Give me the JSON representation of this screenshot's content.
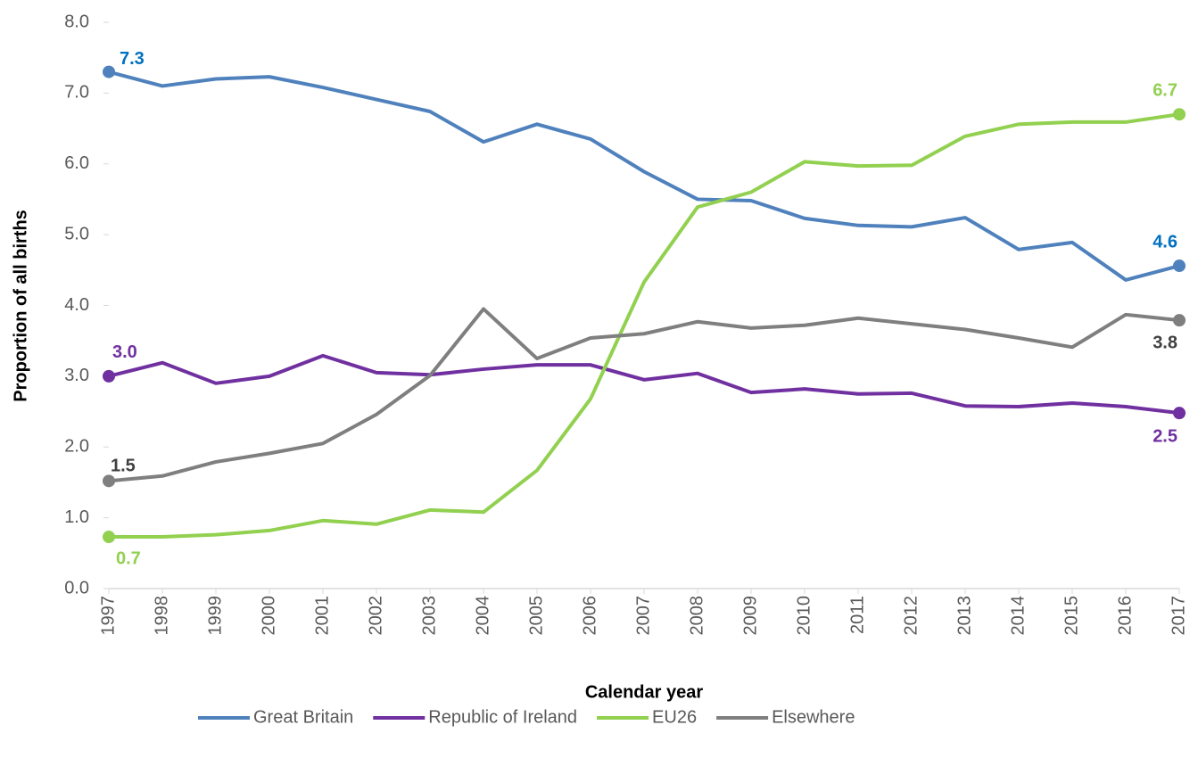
{
  "chart_data": {
    "type": "line",
    "x_label": "Calendar year",
    "y_label": "Proportion of all births",
    "categories": [
      "1997",
      "1998",
      "1999",
      "2000",
      "2001",
      "2002",
      "2003",
      "2004",
      "2005",
      "2006",
      "2007",
      "2008",
      "2009",
      "2010",
      "2011",
      "2012",
      "2013",
      "2014",
      "2015",
      "2016",
      "2017"
    ],
    "series": [
      {
        "name": "Great Britain",
        "color": "#4f81bd",
        "values": [
          7.3,
          7.1,
          7.2,
          7.23,
          7.08,
          6.91,
          6.74,
          6.31,
          6.56,
          6.35,
          5.89,
          5.5,
          5.48,
          5.23,
          5.13,
          5.11,
          5.24,
          4.79,
          4.89,
          4.36,
          4.56
        ],
        "value_labels": [
          "7.3",
          null,
          null,
          null,
          null,
          null,
          null,
          null,
          null,
          null,
          null,
          null,
          null,
          null,
          null,
          null,
          null,
          null,
          null,
          null,
          "4.6"
        ]
      },
      {
        "name": "Republic of Ireland",
        "color": "#7030a0",
        "values": [
          3.0,
          3.19,
          2.9,
          3.0,
          3.29,
          3.05,
          3.02,
          3.1,
          3.16,
          3.16,
          2.95,
          3.04,
          2.77,
          2.82,
          2.75,
          2.76,
          2.58,
          2.57,
          2.62,
          2.57,
          2.48
        ],
        "value_labels": [
          "3.0",
          null,
          null,
          null,
          null,
          null,
          null,
          null,
          null,
          null,
          null,
          null,
          null,
          null,
          null,
          null,
          null,
          null,
          null,
          null,
          "2.5"
        ]
      },
      {
        "name": "EU26",
        "color": "#92d050",
        "values": [
          0.73,
          0.73,
          0.76,
          0.82,
          0.96,
          0.91,
          1.11,
          1.08,
          1.67,
          2.68,
          4.33,
          5.39,
          5.6,
          6.03,
          5.97,
          5.98,
          6.39,
          6.56,
          6.59,
          6.59,
          6.7
        ],
        "value_labels": [
          "0.7",
          null,
          null,
          null,
          null,
          null,
          null,
          null,
          null,
          null,
          null,
          null,
          null,
          null,
          null,
          null,
          null,
          null,
          null,
          null,
          "6.7"
        ]
      },
      {
        "name": "Elsewhere",
        "color": "#7f7f7f",
        "values": [
          1.52,
          1.59,
          1.79,
          1.91,
          2.05,
          2.46,
          3.01,
          3.95,
          3.25,
          3.54,
          3.6,
          3.77,
          3.68,
          3.72,
          3.82,
          3.74,
          3.66,
          3.54,
          3.41,
          3.87,
          3.79
        ],
        "value_labels": [
          "1.5",
          null,
          null,
          null,
          null,
          null,
          null,
          null,
          null,
          null,
          null,
          null,
          null,
          null,
          null,
          null,
          null,
          null,
          null,
          null,
          "3.8"
        ]
      }
    ],
    "ylim": [
      0,
      8
    ],
    "yticks": [
      {
        "value": 0,
        "label": "0.0"
      },
      {
        "value": 1,
        "label": "1.0"
      },
      {
        "value": 2,
        "label": "2.0"
      },
      {
        "value": 3,
        "label": "3.0"
      },
      {
        "value": 4,
        "label": "4.0"
      },
      {
        "value": 5,
        "label": "5.0"
      },
      {
        "value": 6,
        "label": "6.0"
      },
      {
        "value": 7,
        "label": "7.0"
      },
      {
        "value": 8,
        "label": "8.0"
      }
    ],
    "grid": false,
    "legend": "bottom"
  }
}
